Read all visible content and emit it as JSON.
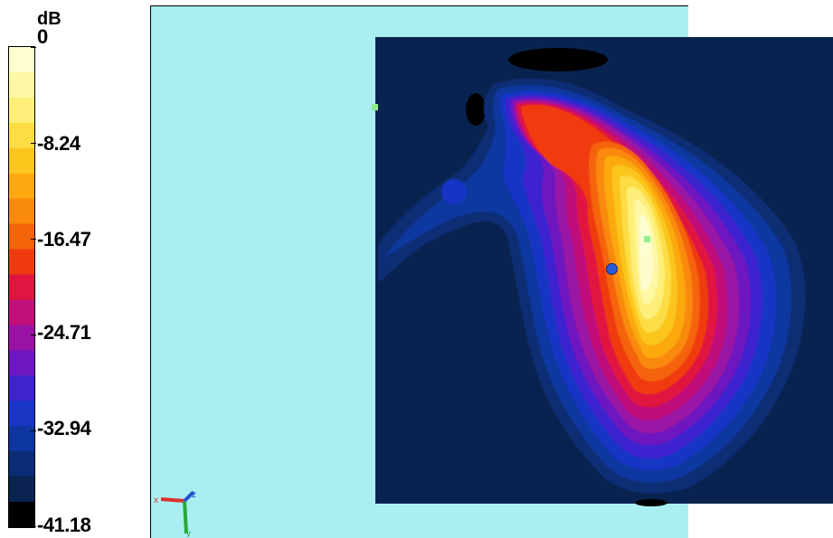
{
  "colorbar": {
    "unit": "dB",
    "ticks": [
      "0",
      "-8.24",
      "-16.47",
      "-24.71",
      "-32.94",
      "-41.18"
    ],
    "colors": [
      "#fdfdd0",
      "#fef8a4",
      "#fdef79",
      "#fddd44",
      "#fcc51c",
      "#fba90e",
      "#f98a0a",
      "#f5630a",
      "#ef3a10",
      "#e01540",
      "#c0107a",
      "#9a12a5",
      "#6e17c0",
      "#3e24cf",
      "#1935c4",
      "#0e36a0",
      "#0b2c74",
      "#0a2350",
      "#000000"
    ]
  },
  "field_colors": {
    "background": "#a9eef0",
    "plane": "#092350"
  },
  "axes": {
    "x_label": "x",
    "y_label": "y",
    "z_label": "z"
  }
}
